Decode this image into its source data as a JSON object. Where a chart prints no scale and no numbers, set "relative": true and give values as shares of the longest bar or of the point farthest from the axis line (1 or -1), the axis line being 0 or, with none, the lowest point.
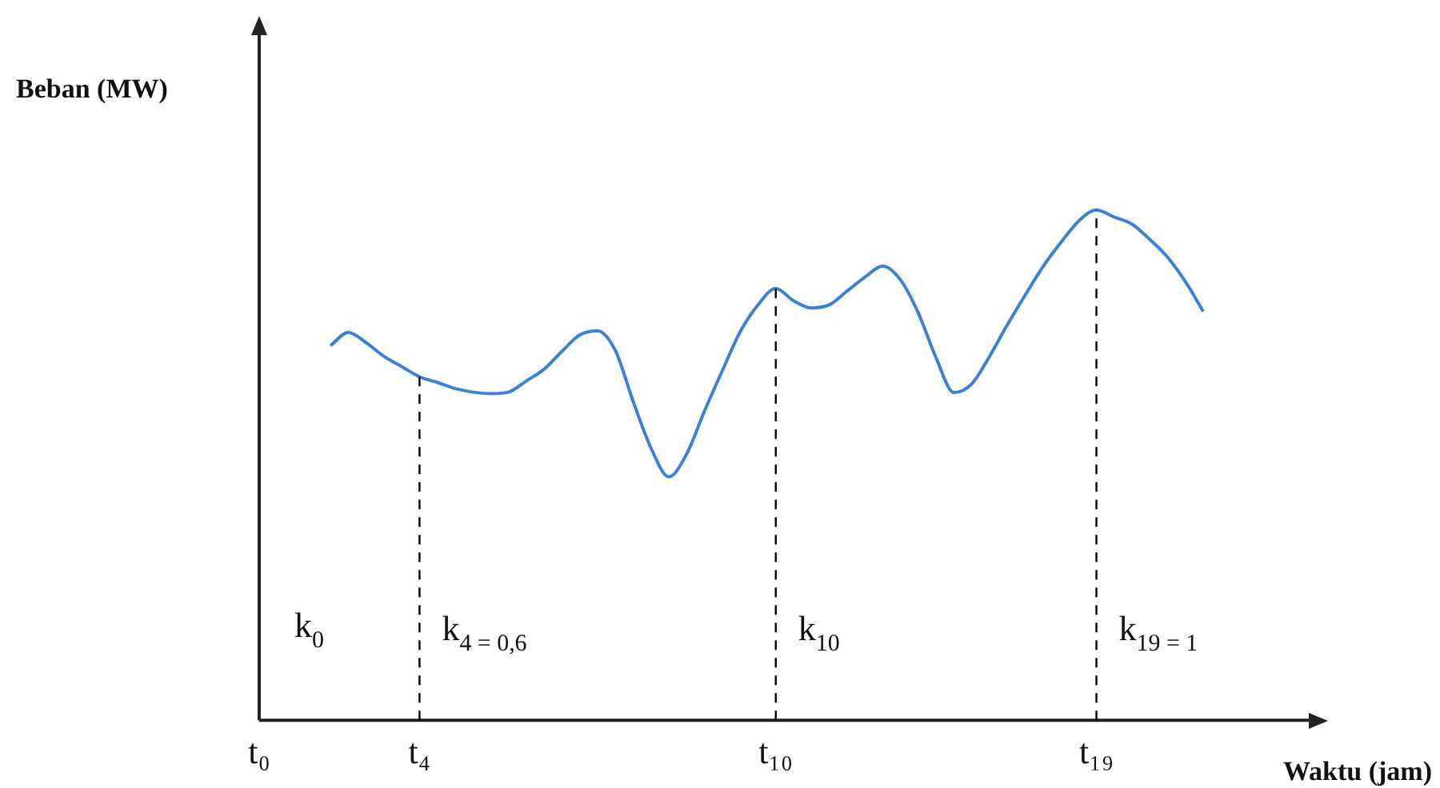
{
  "chart_data": {
    "type": "line",
    "relative": true,
    "xlabel": "Waktu (jam)",
    "ylabel": "Beban (MW)",
    "categories": [
      "t₀",
      null,
      null,
      null,
      null,
      null,
      null,
      null,
      null,
      "t₄",
      null,
      null,
      null,
      null,
      null,
      null,
      null,
      null,
      null,
      null,
      null,
      null,
      null,
      null,
      null,
      null,
      null,
      null,
      null,
      "t₁₀",
      null,
      null,
      null,
      null,
      null,
      null,
      null,
      null,
      null,
      null,
      null,
      null,
      null,
      null,
      null,
      null,
      null,
      "t₁₉",
      null,
      null,
      null,
      null,
      null,
      null,
      null,
      null,
      null,
      null,
      null,
      null,
      null
    ],
    "series": [
      {
        "color": "#3b82d6",
        "values": [
          null,
          null,
          null,
          null,
          0.734,
          0.76,
          0.74,
          0.713,
          0.693,
          0.673,
          0.662,
          0.65,
          0.643,
          0.64,
          0.643,
          0.665,
          0.688,
          0.723,
          0.755,
          0.763,
          0.724,
          0.624,
          0.533,
          0.477,
          0.522,
          0.606,
          0.685,
          0.761,
          0.814,
          0.846,
          0.822,
          0.808,
          0.814,
          0.841,
          0.868,
          0.89,
          0.863,
          0.798,
          0.71,
          0.642,
          0.659,
          0.713,
          0.775,
          0.833,
          0.889,
          0.936,
          0.978,
          1.0,
          0.986,
          0.972,
          0.942,
          0.907,
          0.859,
          0.801,
          null,
          null,
          null,
          null,
          null,
          null,
          null
        ]
      }
    ],
    "ref_lines": [
      {
        "axis": "x",
        "value": "t₄",
        "label": "k$_{4 = 0,6}$",
        "line_style": "dashed",
        "color": "#000000"
      },
      {
        "axis": "x",
        "value": "t₁₀",
        "label": "k$_{10}$",
        "line_style": "dashed",
        "color": "#000000"
      },
      {
        "axis": "x",
        "value": "t₁₉",
        "label": "k$_{19 = 1}$",
        "line_style": "dashed",
        "color": "#000000"
      }
    ],
    "annotations": [
      "k$_{0}$"
    ],
    "grid": false,
    "legend": false,
    "marker": "none",
    "line_style": "solid"
  }
}
